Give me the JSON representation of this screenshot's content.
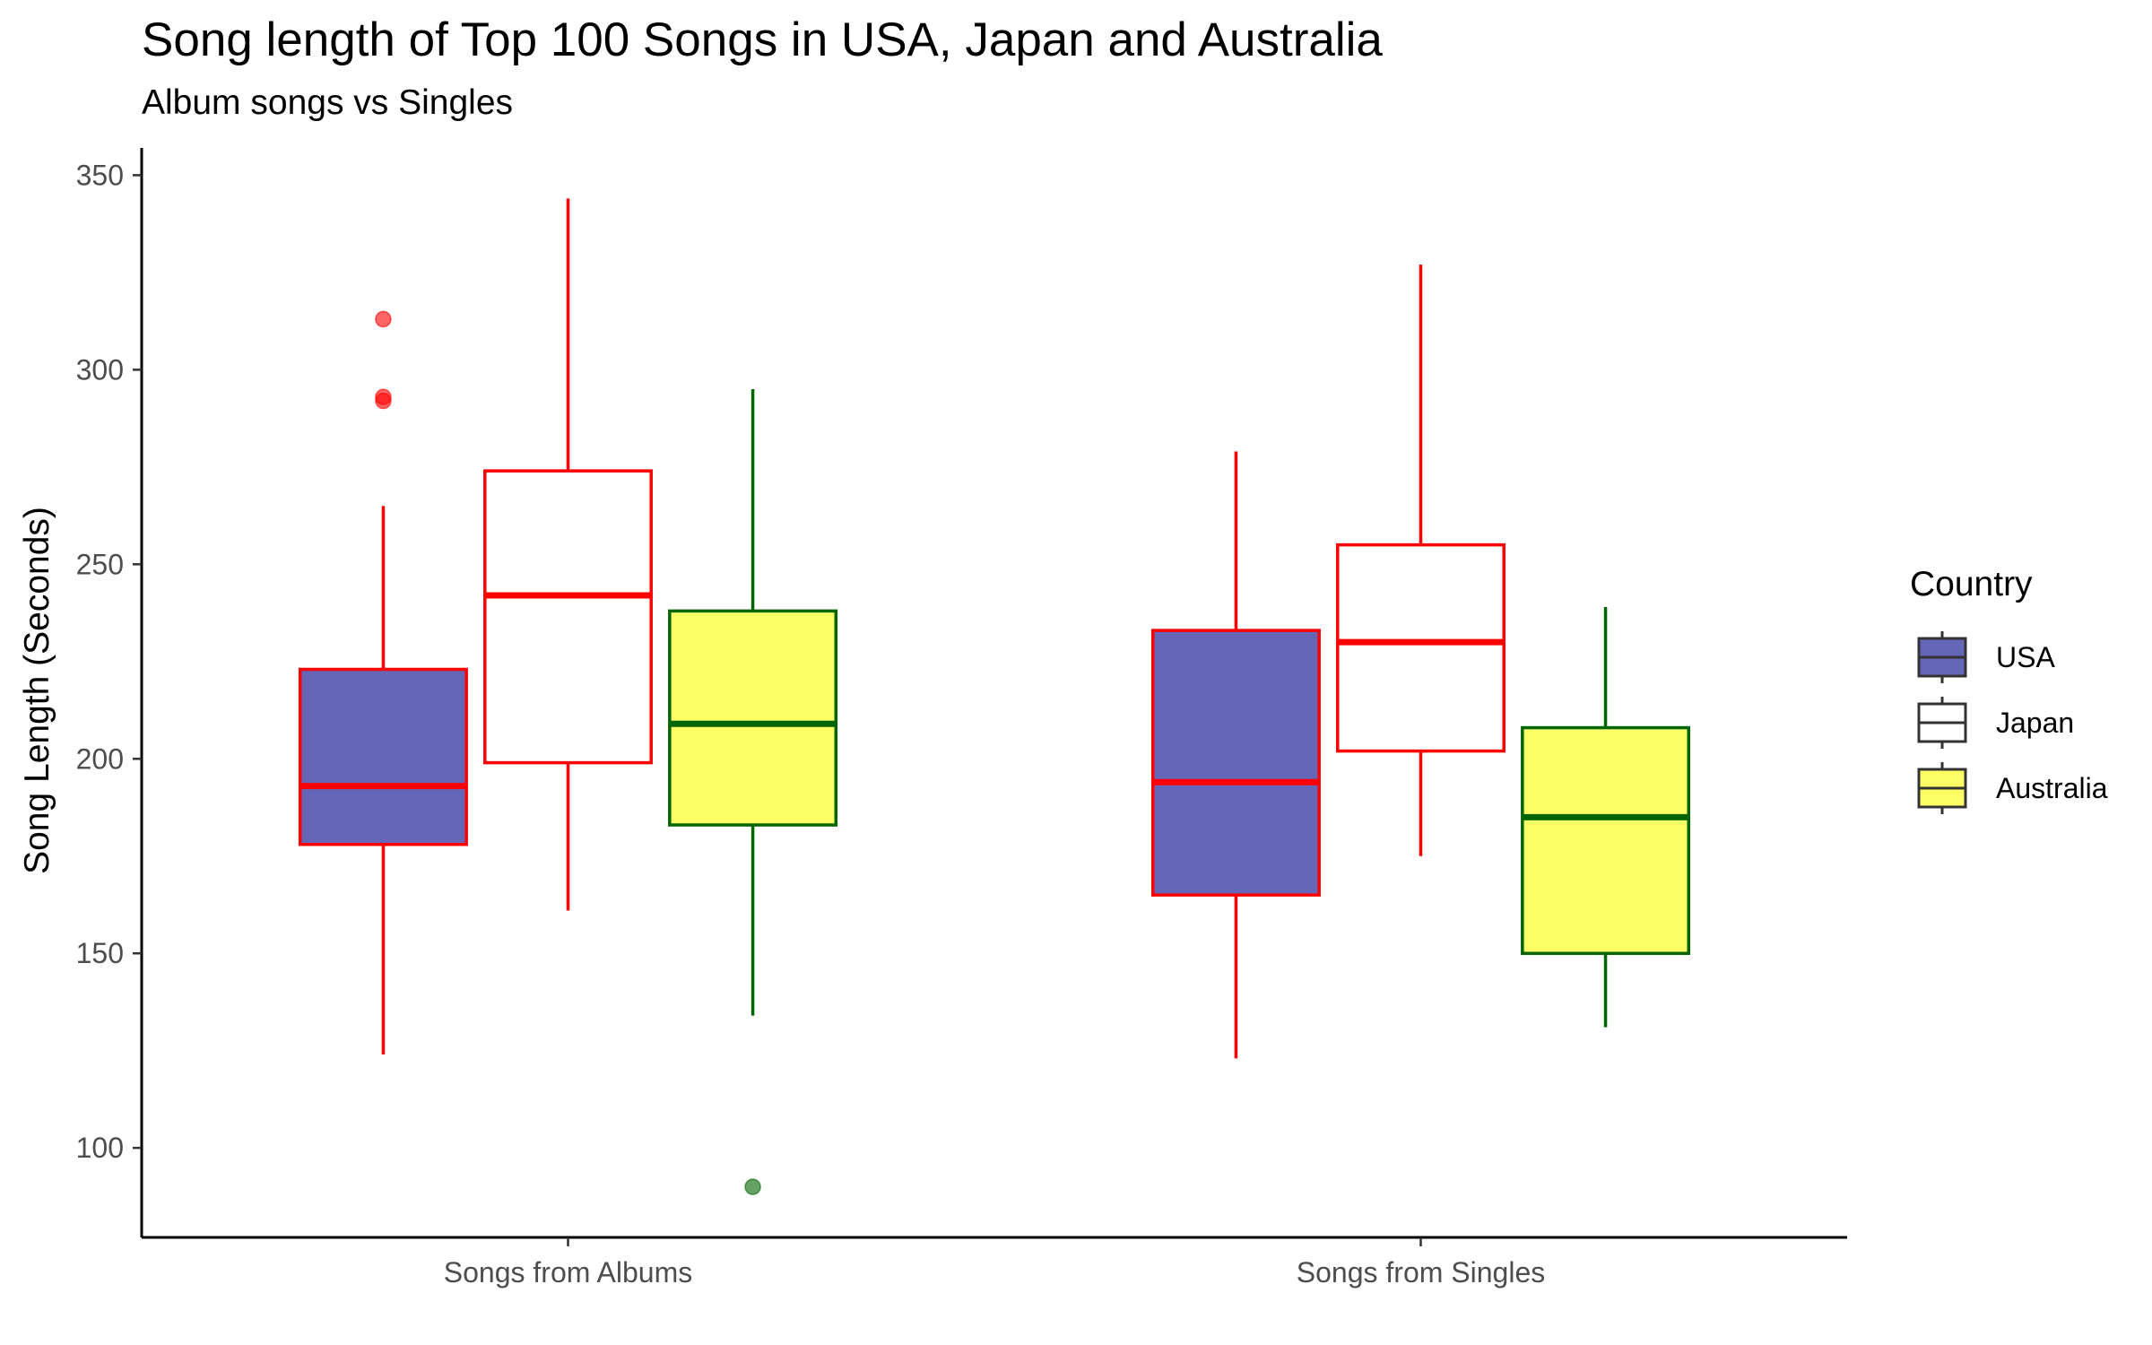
{
  "chart_data": {
    "type": "boxplot",
    "title": "Song length of Top 100 Songs in USA, Japan and Australia",
    "subtitle": "Album songs vs Singles",
    "xlabel": "",
    "ylabel": "Song Length (Seconds)",
    "ylim": [
      77,
      357
    ],
    "yticks": [
      100,
      150,
      200,
      250,
      300,
      350
    ],
    "categories": [
      "Songs from Albums",
      "Songs from Singles"
    ],
    "grid": false,
    "legend": {
      "title": "Country",
      "position": "right"
    },
    "series": [
      {
        "name": "USA",
        "fill": "#6666b8",
        "stroke": "#ff0000",
        "boxes": [
          {
            "min": 124,
            "q1": 178,
            "median": 193,
            "q3": 223,
            "max": 265,
            "outliers": [
              292,
              293,
              313
            ]
          },
          {
            "min": 123,
            "q1": 165,
            "median": 194,
            "q3": 233,
            "max": 279,
            "outliers": []
          }
        ]
      },
      {
        "name": "Japan",
        "fill": "#ffffff",
        "stroke": "#ff0000",
        "boxes": [
          {
            "min": 161,
            "q1": 199,
            "median": 242,
            "q3": 274,
            "max": 344,
            "outliers": []
          },
          {
            "min": 175,
            "q1": 202,
            "median": 230,
            "q3": 255,
            "max": 327,
            "outliers": []
          }
        ]
      },
      {
        "name": "Australia",
        "fill": "#ffff66",
        "stroke": "#006400",
        "boxes": [
          {
            "min": 134,
            "q1": 183,
            "median": 209,
            "q3": 238,
            "max": 295,
            "outliers": [
              90
            ]
          },
          {
            "min": 131,
            "q1": 150,
            "median": 185,
            "q3": 208,
            "max": 239,
            "outliers": []
          }
        ]
      }
    ]
  }
}
